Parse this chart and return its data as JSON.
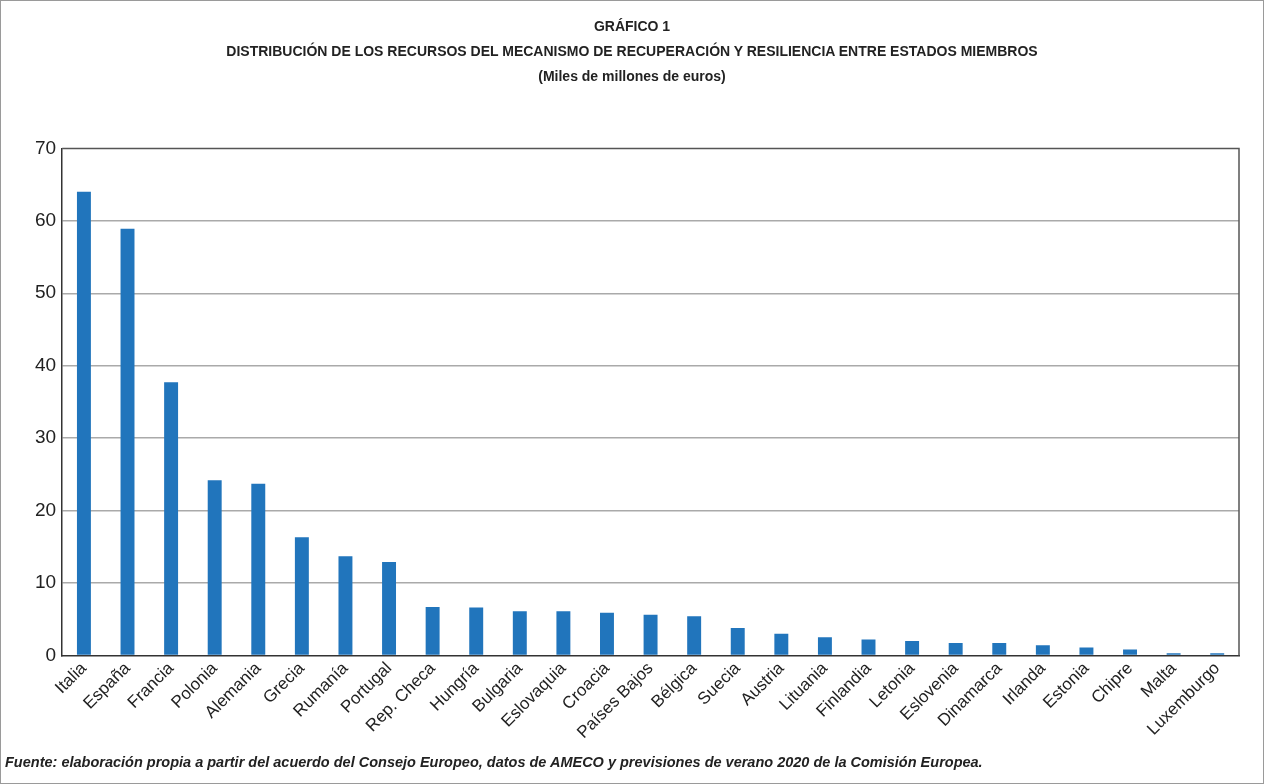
{
  "chart_data": {
    "type": "bar",
    "title": "DISTRIBUCIÓN DE LOS RECURSOS DEL MECANISMO DE RECUPERACIÓN Y RESILIENCIA ENTRE ESTADOS MIEMBROS",
    "subtitle": "(Miles de millones de euros)",
    "annotations": [
      "GRÁFICO 1",
      "Fuente: elaboración propia a partir del acuerdo del Consejo Europeo, datos de AMECO y previsiones de verano 2020 de la Comisión Europea."
    ],
    "categories": [
      "Italia",
      "España",
      "Francia",
      "Polonia",
      "Alemania",
      "Grecia",
      "Rumanía",
      "Portugal",
      "Rep. Checa",
      "Hungría",
      "Bulgaria",
      "Eslovaquia",
      "Croacia",
      "Países Bajos",
      "Bélgica",
      "Suecia",
      "Austria",
      "Lituania",
      "Finlandia",
      "Letonia",
      "Eslovenia",
      "Dinamarca",
      "Irlanda",
      "Estonia",
      "Chipre",
      "Malta",
      "Luxemburgo"
    ],
    "values": [
      64.0,
      58.9,
      37.7,
      24.2,
      23.7,
      16.3,
      13.7,
      12.9,
      6.7,
      6.6,
      6.1,
      6.1,
      5.9,
      5.6,
      5.4,
      3.8,
      3.0,
      2.5,
      2.2,
      2.0,
      1.7,
      1.7,
      1.4,
      1.1,
      0.8,
      0.3,
      0.3
    ],
    "color": "#2175bc",
    "ylim": [
      0,
      70
    ],
    "yticks": [
      0,
      10,
      20,
      30,
      40,
      50,
      60,
      70
    ],
    "grid": "y"
  }
}
